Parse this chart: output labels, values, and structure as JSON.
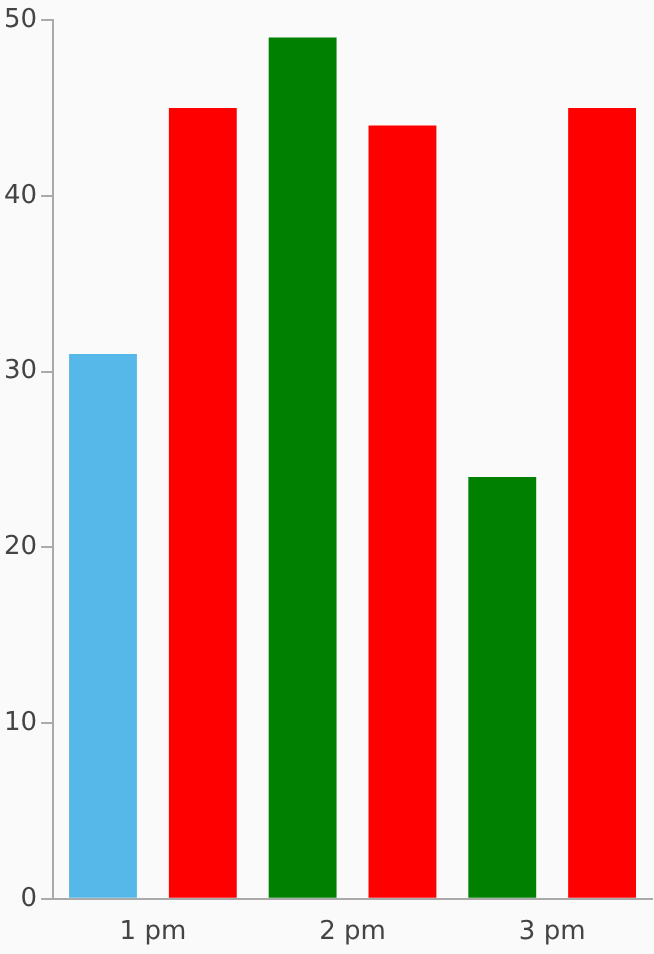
{
  "chart_data": {
    "type": "bar",
    "categories": [
      "1 pm",
      "2 pm",
      "3 pm"
    ],
    "series": [
      {
        "color": "#008000",
        "colors": [
          "#56b8e8",
          "#008000",
          "#008000"
        ],
        "values": [
          31,
          49,
          24
        ]
      },
      {
        "color": "#ff0000",
        "values": [
          45,
          44,
          45
        ]
      }
    ],
    "ylim": [
      0,
      50
    ],
    "yticks": [
      0,
      10,
      20,
      30,
      40,
      50
    ],
    "grid": false,
    "legend": false
  }
}
